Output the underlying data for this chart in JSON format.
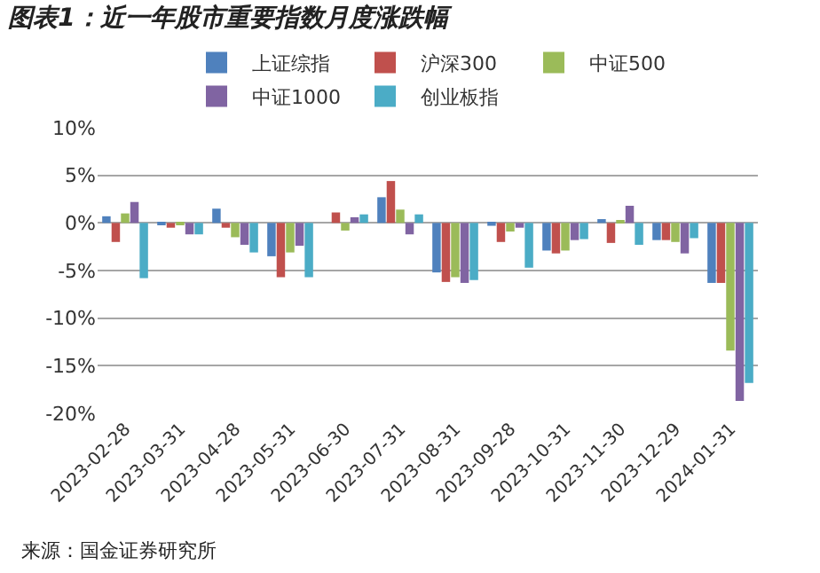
{
  "chart_data": {
    "type": "bar",
    "title": "图表1：近一年股市重要指数月度涨跌幅",
    "categories": [
      "2023-02-28",
      "2023-03-31",
      "2023-04-28",
      "2023-05-31",
      "2023-06-30",
      "2023-07-31",
      "2023-08-31",
      "2023-09-28",
      "2023-10-31",
      "2023-11-30",
      "2023-12-29",
      "2024-01-31"
    ],
    "series": [
      {
        "name": "上证综指",
        "color": "#4f81bd",
        "values": [
          0.7,
          -0.2,
          1.5,
          -3.5,
          0.0,
          2.7,
          -5.2,
          -0.3,
          -2.9,
          0.4,
          -1.8,
          -6.3
        ]
      },
      {
        "name": "沪深300",
        "color": "#c0504d",
        "values": [
          -2.0,
          -0.5,
          -0.5,
          -5.7,
          1.1,
          4.4,
          -6.2,
          -2.0,
          -3.2,
          -2.1,
          -1.8,
          -6.3
        ]
      },
      {
        "name": "中证500",
        "color": "#9bbb59",
        "values": [
          1.0,
          -0.2,
          -1.5,
          -3.1,
          -0.8,
          1.4,
          -5.7,
          -0.9,
          -2.9,
          0.3,
          -2.0,
          -13.4
        ]
      },
      {
        "name": "中证1000",
        "color": "#8064a2",
        "values": [
          2.2,
          -1.2,
          -2.3,
          -2.4,
          0.6,
          -1.2,
          -6.3,
          -0.5,
          -1.8,
          1.8,
          -3.2,
          -18.7
        ]
      },
      {
        "name": "创业板指",
        "color": "#4bacc6",
        "values": [
          -5.8,
          -1.2,
          -3.1,
          -5.7,
          0.9,
          0.9,
          -6.0,
          -4.7,
          -1.7,
          -2.3,
          -1.6,
          -16.8
        ]
      }
    ],
    "ylim": [
      -20,
      10
    ],
    "yticks": [
      {
        "value": 10,
        "label": "10%"
      },
      {
        "value": 5,
        "label": "5%"
      },
      {
        "value": 0,
        "label": "0%"
      },
      {
        "value": -5,
        "label": "-5%"
      },
      {
        "value": -10,
        "label": "-10%"
      },
      {
        "value": -15,
        "label": "-15%"
      },
      {
        "value": -20,
        "label": "-20%"
      }
    ],
    "grid": "y",
    "legend": "top",
    "annotations": [
      "来源：国金证券研究所"
    ]
  }
}
